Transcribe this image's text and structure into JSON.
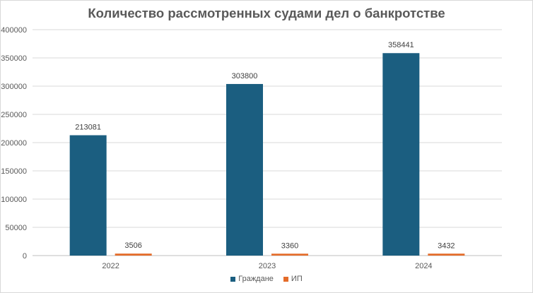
{
  "chart_data": {
    "type": "bar",
    "title": "Количество рассмотренных судами дел о банкротстве",
    "categories": [
      "2022",
      "2023",
      "2024"
    ],
    "series": [
      {
        "name": "Граждане",
        "color": "#1b5e80",
        "values": [
          213081,
          303800,
          358441
        ]
      },
      {
        "name": "ИП",
        "color": "#e46c2a",
        "values": [
          3506,
          3360,
          3432
        ]
      }
    ],
    "ylim": [
      0,
      400000
    ],
    "yticks": [
      "0",
      "50000",
      "100000",
      "150000",
      "200000",
      "250000",
      "300000",
      "350000",
      "400000"
    ],
    "grid": true,
    "legend_position": "bottom"
  }
}
